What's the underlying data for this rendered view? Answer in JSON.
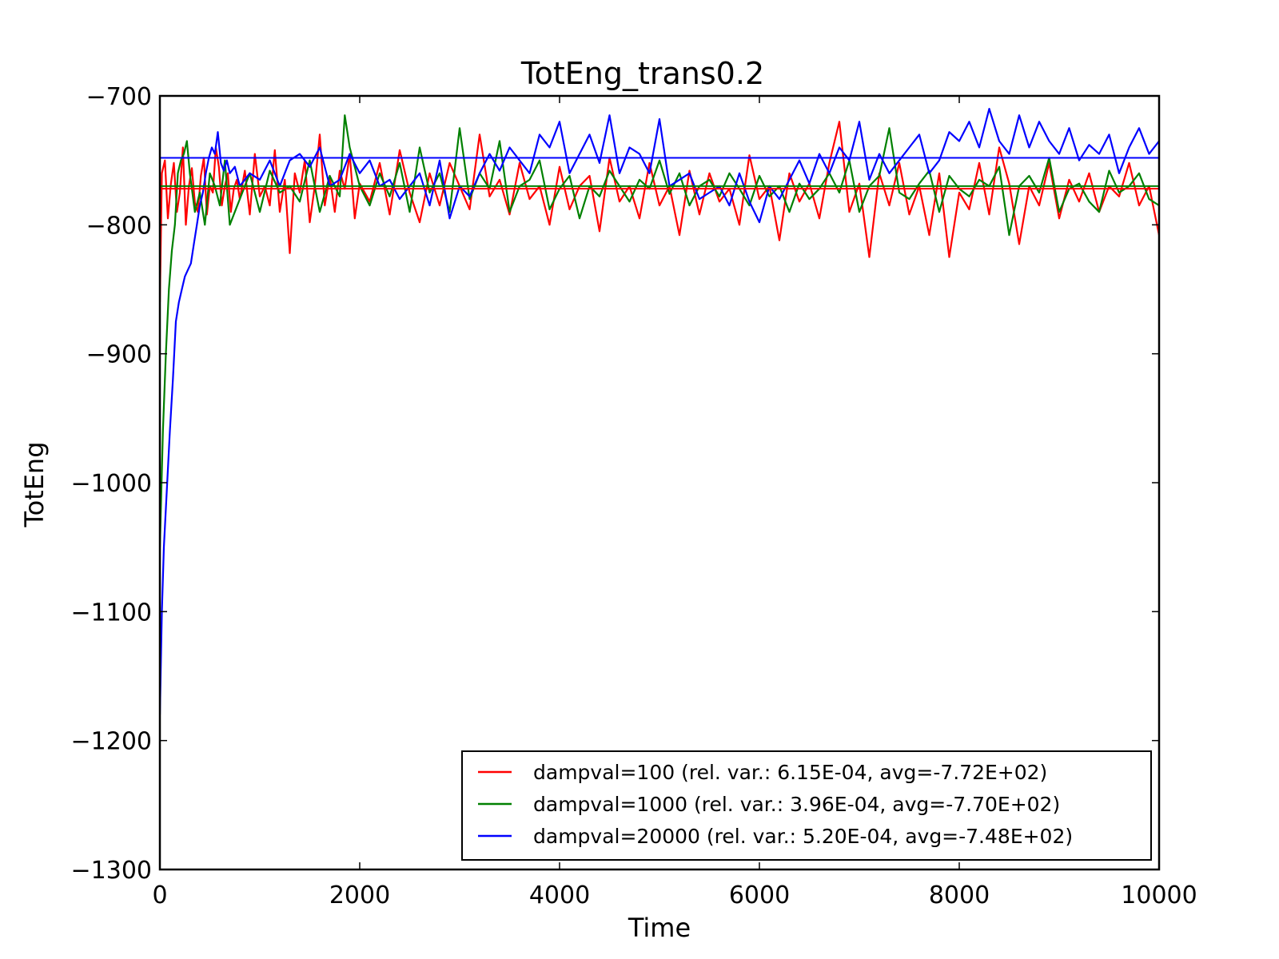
{
  "chart_data": {
    "type": "line",
    "title": "TotEng_trans0.2",
    "xlabel": "Time",
    "ylabel": "TotEng",
    "xlim": [
      0,
      10000
    ],
    "ylim": [
      -1300,
      -700
    ],
    "xticks": [
      0,
      2000,
      4000,
      6000,
      8000,
      10000
    ],
    "yticks": [
      -700,
      -800,
      -900,
      -1000,
      -1100,
      -1200,
      -1300
    ],
    "xtick_labels": [
      "0",
      "2000",
      "4000",
      "6000",
      "8000",
      "10000"
    ],
    "ytick_labels": [
      "−700",
      "−800",
      "−900",
      "−1000",
      "−1100",
      "−1200",
      "−1300"
    ],
    "grid": false,
    "legend_position": "lower-right",
    "series": [
      {
        "name": "dampval=100 (rel. var.: 6.15E-04, avg=-7.72E+02)",
        "color": "#ff0000",
        "average": -772,
        "x": [
          0,
          20,
          50,
          80,
          110,
          140,
          170,
          200,
          230,
          260,
          290,
          320,
          350,
          380,
          410,
          440,
          470,
          500,
          530,
          560,
          590,
          620,
          650,
          680,
          710,
          740,
          770,
          800,
          850,
          900,
          950,
          1000,
          1050,
          1100,
          1150,
          1200,
          1250,
          1300,
          1350,
          1400,
          1450,
          1500,
          1550,
          1600,
          1650,
          1700,
          1750,
          1800,
          1850,
          1900,
          1950,
          2000,
          2100,
          2200,
          2300,
          2400,
          2500,
          2600,
          2700,
          2800,
          2900,
          3000,
          3100,
          3200,
          3300,
          3400,
          3500,
          3600,
          3700,
          3800,
          3900,
          4000,
          4100,
          4200,
          4300,
          4400,
          4500,
          4600,
          4700,
          4800,
          4900,
          5000,
          5100,
          5200,
          5300,
          5400,
          5500,
          5600,
          5700,
          5800,
          5900,
          6000,
          6100,
          6200,
          6300,
          6400,
          6500,
          6600,
          6700,
          6800,
          6900,
          7000,
          7100,
          7200,
          7300,
          7400,
          7500,
          7600,
          7700,
          7800,
          7900,
          8000,
          8100,
          8200,
          8300,
          8400,
          8500,
          8600,
          8700,
          8800,
          8900,
          9000,
          9100,
          9200,
          9300,
          9400,
          9500,
          9600,
          9700,
          9800,
          9900,
          10000
        ],
        "y": [
          -860,
          -760,
          -750,
          -795,
          -768,
          -752,
          -790,
          -775,
          -740,
          -800,
          -770,
          -756,
          -783,
          -790,
          -762,
          -748,
          -792,
          -770,
          -775,
          -740,
          -755,
          -785,
          -770,
          -760,
          -790,
          -772,
          -765,
          -780,
          -758,
          -792,
          -745,
          -778,
          -770,
          -785,
          -742,
          -790,
          -765,
          -822,
          -760,
          -775,
          -750,
          -798,
          -770,
          -730,
          -785,
          -762,
          -790,
          -758,
          -772,
          -745,
          -795,
          -768,
          -782,
          -752,
          -792,
          -742,
          -775,
          -798,
          -760,
          -785,
          -752,
          -770,
          -788,
          -730,
          -778,
          -765,
          -792,
          -752,
          -780,
          -770,
          -800,
          -755,
          -788,
          -770,
          -762,
          -805,
          -748,
          -782,
          -770,
          -795,
          -752,
          -785,
          -770,
          -808,
          -758,
          -792,
          -760,
          -782,
          -772,
          -800,
          -746,
          -780,
          -770,
          -812,
          -760,
          -782,
          -768,
          -795,
          -752,
          -720,
          -790,
          -768,
          -825,
          -760,
          -785,
          -752,
          -792,
          -770,
          -808,
          -760,
          -825,
          -775,
          -788,
          -752,
          -792,
          -740,
          -768,
          -815,
          -770,
          -785,
          -752,
          -795,
          -765,
          -782,
          -760,
          -790,
          -770,
          -778,
          -752,
          -785,
          -770,
          -808
        ]
      },
      {
        "name": "dampval=1000 (rel. var.: 3.96E-04, avg=-7.70E+02)",
        "color": "#008000",
        "average": -770,
        "x": [
          0,
          30,
          60,
          90,
          120,
          150,
          180,
          210,
          240,
          270,
          300,
          350,
          400,
          450,
          500,
          550,
          600,
          650,
          700,
          800,
          900,
          1000,
          1100,
          1200,
          1300,
          1400,
          1500,
          1600,
          1700,
          1800,
          1850,
          1900,
          1950,
          2000,
          2100,
          2200,
          2300,
          2400,
          2500,
          2600,
          2700,
          2800,
          2900,
          3000,
          3100,
          3200,
          3300,
          3400,
          3500,
          3600,
          3700,
          3800,
          3900,
          4000,
          4100,
          4200,
          4300,
          4400,
          4500,
          4600,
          4700,
          4800,
          4900,
          5000,
          5100,
          5200,
          5300,
          5400,
          5500,
          5600,
          5700,
          5800,
          5900,
          6000,
          6100,
          6200,
          6300,
          6400,
          6500,
          6600,
          6700,
          6800,
          6900,
          7000,
          7100,
          7200,
          7300,
          7400,
          7500,
          7600,
          7700,
          7800,
          7900,
          8000,
          8100,
          8200,
          8300,
          8400,
          8500,
          8600,
          8700,
          8800,
          8900,
          9000,
          9100,
          9200,
          9300,
          9400,
          9500,
          9600,
          9700,
          9800,
          9900,
          10000
        ],
        "y": [
          -1050,
          -960,
          -900,
          -850,
          -820,
          -800,
          -760,
          -750,
          -745,
          -735,
          -760,
          -790,
          -775,
          -800,
          -760,
          -770,
          -785,
          -750,
          -800,
          -780,
          -760,
          -790,
          -758,
          -775,
          -770,
          -782,
          -750,
          -790,
          -762,
          -778,
          -715,
          -740,
          -755,
          -770,
          -785,
          -760,
          -778,
          -752,
          -790,
          -740,
          -775,
          -760,
          -790,
          -725,
          -780,
          -760,
          -772,
          -735,
          -790,
          -770,
          -765,
          -750,
          -788,
          -772,
          -762,
          -795,
          -770,
          -778,
          -758,
          -770,
          -782,
          -765,
          -772,
          -750,
          -776,
          -760,
          -785,
          -770,
          -765,
          -778,
          -760,
          -772,
          -785,
          -762,
          -778,
          -770,
          -790,
          -768,
          -780,
          -772,
          -760,
          -775,
          -750,
          -790,
          -770,
          -762,
          -725,
          -775,
          -780,
          -768,
          -758,
          -790,
          -762,
          -772,
          -778,
          -765,
          -770,
          -755,
          -808,
          -770,
          -762,
          -775,
          -748,
          -790,
          -772,
          -768,
          -782,
          -790,
          -758,
          -775,
          -770,
          -760,
          -780,
          -785
        ]
      },
      {
        "name": "dampval=20000 (rel. var.: 5.20E-04, avg=-7.48E+02)",
        "color": "#0000ff",
        "average": -748,
        "x": [
          0,
          20,
          40,
          60,
          80,
          100,
          130,
          160,
          190,
          220,
          250,
          280,
          310,
          340,
          370,
          400,
          430,
          460,
          490,
          520,
          550,
          580,
          610,
          640,
          670,
          700,
          750,
          800,
          900,
          1000,
          1100,
          1200,
          1300,
          1400,
          1500,
          1600,
          1700,
          1800,
          1900,
          2000,
          2100,
          2200,
          2300,
          2400,
          2500,
          2600,
          2700,
          2800,
          2900,
          3000,
          3100,
          3200,
          3300,
          3400,
          3500,
          3600,
          3700,
          3800,
          3900,
          4000,
          4100,
          4200,
          4300,
          4400,
          4500,
          4600,
          4700,
          4800,
          4900,
          5000,
          5100,
          5200,
          5300,
          5400,
          5500,
          5600,
          5700,
          5800,
          5900,
          6000,
          6100,
          6200,
          6300,
          6400,
          6500,
          6600,
          6700,
          6800,
          6900,
          7000,
          7100,
          7200,
          7300,
          7400,
          7500,
          7600,
          7700,
          7800,
          7900,
          8000,
          8100,
          8200,
          8300,
          8400,
          8500,
          8600,
          8700,
          8800,
          8900,
          9000,
          9100,
          9200,
          9300,
          9400,
          9500,
          9600,
          9700,
          9800,
          9900,
          10000
        ],
        "y": [
          -1180,
          -1100,
          -1050,
          -1020,
          -990,
          -960,
          -920,
          -875,
          -860,
          -850,
          -840,
          -835,
          -830,
          -815,
          -800,
          -785,
          -775,
          -760,
          -748,
          -740,
          -745,
          -728,
          -752,
          -758,
          -750,
          -760,
          -755,
          -770,
          -760,
          -765,
          -750,
          -770,
          -750,
          -745,
          -755,
          -740,
          -770,
          -765,
          -745,
          -760,
          -750,
          -770,
          -765,
          -780,
          -770,
          -760,
          -785,
          -750,
          -795,
          -770,
          -778,
          -760,
          -745,
          -758,
          -740,
          -750,
          -760,
          -730,
          -740,
          -720,
          -760,
          -745,
          -730,
          -752,
          -715,
          -760,
          -740,
          -745,
          -760,
          -718,
          -770,
          -765,
          -760,
          -780,
          -775,
          -770,
          -785,
          -760,
          -782,
          -798,
          -770,
          -780,
          -765,
          -750,
          -768,
          -745,
          -760,
          -740,
          -750,
          -720,
          -765,
          -745,
          -760,
          -750,
          -740,
          -730,
          -760,
          -750,
          -728,
          -735,
          -720,
          -740,
          -710,
          -735,
          -745,
          -715,
          -740,
          -720,
          -735,
          -745,
          -725,
          -750,
          -738,
          -745,
          -730,
          -760,
          -740,
          -725,
          -745,
          -735
        ]
      }
    ]
  }
}
